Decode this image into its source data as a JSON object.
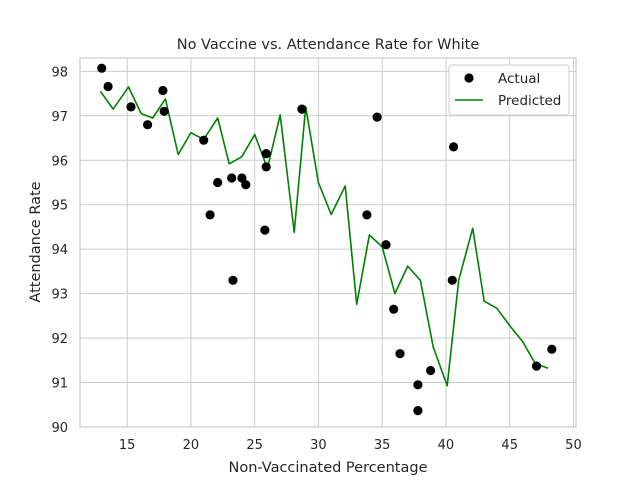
{
  "chart_data": {
    "type": "scatter",
    "title": "No Vaccine vs. Attendance Rate for White",
    "xlabel": "Non-Vaccinated Percentage",
    "ylabel": "Attendance Rate",
    "xlim": [
      11.3,
      50.2
    ],
    "ylim": [
      90.0,
      98.3
    ],
    "xticks": [
      15,
      20,
      25,
      30,
      35,
      40,
      45,
      50
    ],
    "yticks": [
      90,
      91,
      92,
      93,
      94,
      95,
      96,
      97,
      98
    ],
    "grid": true,
    "legend_position": "top-right",
    "series": [
      {
        "name": "Actual",
        "kind": "scatter",
        "color": "#000000",
        "points": [
          [
            13.0,
            98.07
          ],
          [
            13.5,
            97.66
          ],
          [
            15.3,
            97.2
          ],
          [
            16.6,
            96.8
          ],
          [
            17.8,
            97.57
          ],
          [
            17.9,
            97.1
          ],
          [
            21.0,
            96.45
          ],
          [
            21.5,
            94.77
          ],
          [
            22.1,
            95.5
          ],
          [
            23.2,
            95.6
          ],
          [
            23.3,
            93.3
          ],
          [
            24.0,
            95.6
          ],
          [
            24.3,
            95.45
          ],
          [
            25.8,
            94.43
          ],
          [
            25.9,
            96.15
          ],
          [
            25.9,
            95.85
          ],
          [
            28.7,
            97.15
          ],
          [
            33.8,
            94.77
          ],
          [
            34.6,
            96.97
          ],
          [
            35.3,
            94.1
          ],
          [
            35.9,
            92.65
          ],
          [
            36.4,
            91.65
          ],
          [
            37.8,
            90.95
          ],
          [
            37.8,
            90.37
          ],
          [
            38.8,
            91.27
          ],
          [
            40.5,
            93.3
          ],
          [
            40.6,
            96.3
          ],
          [
            47.1,
            91.37
          ],
          [
            48.3,
            91.75
          ]
        ]
      },
      {
        "name": "Predicted",
        "kind": "line",
        "color": "#008000",
        "points": [
          [
            12.9,
            97.55
          ],
          [
            13.9,
            97.15
          ],
          [
            15.1,
            97.65
          ],
          [
            16.1,
            97.05
          ],
          [
            17.0,
            96.95
          ],
          [
            18.0,
            97.38
          ],
          [
            19.0,
            96.13
          ],
          [
            20.0,
            96.62
          ],
          [
            21.0,
            96.47
          ],
          [
            22.1,
            96.95
          ],
          [
            23.0,
            95.92
          ],
          [
            24.0,
            96.08
          ],
          [
            25.0,
            96.58
          ],
          [
            26.0,
            95.82
          ],
          [
            27.0,
            97.02
          ],
          [
            28.1,
            94.38
          ],
          [
            29.0,
            97.2
          ],
          [
            30.0,
            95.5
          ],
          [
            31.0,
            94.78
          ],
          [
            32.1,
            95.42
          ],
          [
            33.0,
            92.76
          ],
          [
            34.0,
            94.32
          ],
          [
            35.0,
            94.05
          ],
          [
            36.0,
            93.0
          ],
          [
            37.0,
            93.62
          ],
          [
            38.0,
            93.3
          ],
          [
            39.0,
            91.8
          ],
          [
            40.1,
            90.93
          ],
          [
            41.0,
            93.3
          ],
          [
            42.1,
            94.47
          ],
          [
            43.0,
            92.83
          ],
          [
            44.0,
            92.67
          ],
          [
            45.0,
            92.28
          ],
          [
            46.0,
            91.93
          ],
          [
            47.0,
            91.43
          ],
          [
            48.0,
            91.32
          ]
        ]
      }
    ]
  }
}
